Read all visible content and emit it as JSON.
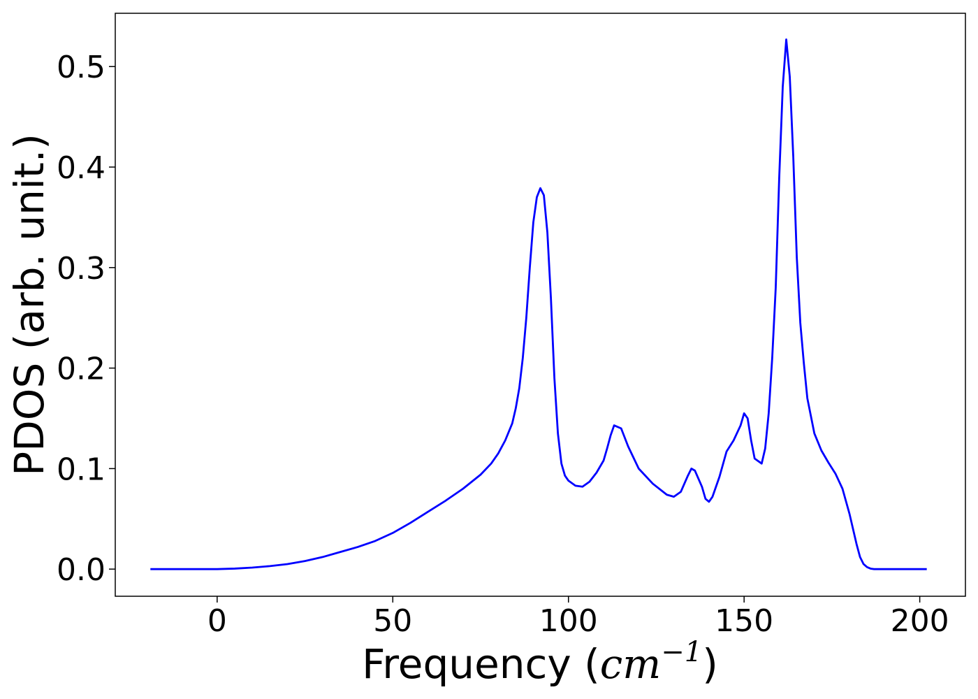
{
  "chart_data": {
    "type": "line",
    "xlabel": {
      "prefix": "Frequency (",
      "unit_base": "cm",
      "unit_exp": "−1",
      "suffix": ")"
    },
    "ylabel": "PDOS (arb. unit.)",
    "xlim": [
      -29,
      213
    ],
    "ylim": [
      -0.027,
      0.553
    ],
    "x_ticks": [
      0,
      50,
      100,
      150,
      200
    ],
    "y_ticks": [
      0.0,
      0.1,
      0.2,
      0.3,
      0.4,
      0.5
    ],
    "x_tick_labels": [
      "0",
      "50",
      "100",
      "150",
      "200"
    ],
    "y_tick_labels": [
      "0.0",
      "0.1",
      "0.2",
      "0.3",
      "0.4",
      "0.5"
    ],
    "grid": false,
    "series": [
      {
        "color": "#0000ff",
        "x": [
          -19,
          -10,
          0,
          5,
          10,
          15,
          20,
          25,
          30,
          35,
          40,
          45,
          50,
          55,
          60,
          65,
          70,
          75,
          78,
          80,
          82,
          84,
          85,
          86,
          87,
          88,
          89,
          90,
          91,
          92,
          93,
          94,
          95,
          96,
          97,
          98,
          99,
          100,
          102,
          104,
          106,
          108,
          110,
          111,
          112,
          113,
          115,
          117,
          120,
          124,
          128,
          130,
          132,
          134,
          135,
          136,
          138,
          139,
          140,
          141,
          143,
          145,
          147,
          149,
          150,
          151,
          152,
          153,
          155,
          156,
          157,
          158,
          159,
          160,
          161,
          162,
          163,
          164,
          165,
          166,
          167,
          168,
          170,
          172,
          174,
          176,
          178,
          180,
          182,
          183,
          184,
          185,
          186,
          187,
          188,
          190,
          195,
          202
        ],
        "y": [
          0.0,
          0.0,
          0.0,
          0.0005,
          0.0015,
          0.003,
          0.005,
          0.008,
          0.012,
          0.017,
          0.022,
          0.028,
          0.036,
          0.046,
          0.057,
          0.068,
          0.08,
          0.094,
          0.105,
          0.115,
          0.128,
          0.145,
          0.16,
          0.18,
          0.21,
          0.25,
          0.3,
          0.345,
          0.37,
          0.379,
          0.372,
          0.335,
          0.27,
          0.19,
          0.135,
          0.105,
          0.093,
          0.088,
          0.083,
          0.082,
          0.087,
          0.096,
          0.108,
          0.12,
          0.133,
          0.143,
          0.14,
          0.122,
          0.1,
          0.085,
          0.074,
          0.072,
          0.077,
          0.093,
          0.1,
          0.098,
          0.082,
          0.07,
          0.067,
          0.072,
          0.092,
          0.117,
          0.128,
          0.143,
          0.155,
          0.15,
          0.128,
          0.11,
          0.105,
          0.12,
          0.155,
          0.21,
          0.28,
          0.39,
          0.48,
          0.527,
          0.49,
          0.41,
          0.31,
          0.245,
          0.205,
          0.17,
          0.135,
          0.118,
          0.106,
          0.095,
          0.08,
          0.055,
          0.025,
          0.012,
          0.005,
          0.002,
          0.0005,
          0.0,
          0.0,
          0.0,
          0.0,
          0.0
        ]
      }
    ]
  }
}
